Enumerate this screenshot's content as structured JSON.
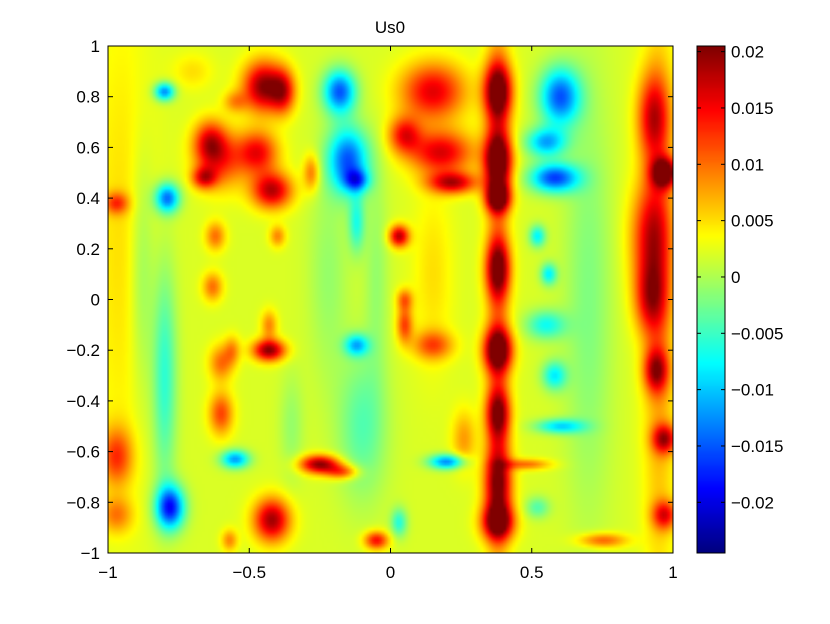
{
  "chart_data": {
    "type": "heatmap",
    "title": "Us0",
    "xlabel": "",
    "ylabel": "",
    "xlim": [
      -1,
      1
    ],
    "ylim": [
      -1,
      1
    ],
    "grid": false,
    "colormap": "jet",
    "x_ticks": [
      {
        "value": -1,
        "label": "−1"
      },
      {
        "value": -0.5,
        "label": "−0.5"
      },
      {
        "value": 0,
        "label": "0"
      },
      {
        "value": 0.5,
        "label": "0.5"
      },
      {
        "value": 1,
        "label": "1"
      }
    ],
    "y_ticks": [
      {
        "value": -1,
        "label": "−1"
      },
      {
        "value": -0.8,
        "label": "−0.8"
      },
      {
        "value": -0.6,
        "label": "−0.6"
      },
      {
        "value": -0.4,
        "label": "−0.4"
      },
      {
        "value": -0.2,
        "label": "−0.2"
      },
      {
        "value": 0,
        "label": "0"
      },
      {
        "value": 0.2,
        "label": "0.2"
      },
      {
        "value": 0.4,
        "label": "0.4"
      },
      {
        "value": 0.6,
        "label": "0.6"
      },
      {
        "value": 0.8,
        "label": "0.8"
      },
      {
        "value": 1,
        "label": "1"
      }
    ],
    "colorbar": {
      "range": [
        -0.0245,
        0.0205
      ],
      "ticks": [
        {
          "value": 0.02,
          "label": "0.02"
        },
        {
          "value": 0.015,
          "label": "0.015"
        },
        {
          "value": 0.01,
          "label": "0.01"
        },
        {
          "value": 0.005,
          "label": "0.005"
        },
        {
          "value": 0,
          "label": "0"
        },
        {
          "value": -0.005,
          "label": "−0.005"
        },
        {
          "value": -0.01,
          "label": "−0.01"
        },
        {
          "value": -0.015,
          "label": "−0.015"
        },
        {
          "value": -0.02,
          "label": "−0.02"
        }
      ]
    },
    "background_value": 0.002,
    "features": [
      {
        "x": -0.95,
        "y": 0.25,
        "sx": 0.08,
        "sy": 0.7,
        "v": 0.003
      },
      {
        "x": -0.97,
        "y": 0.38,
        "sx": 0.03,
        "sy": 0.03,
        "v": 0.009
      },
      {
        "x": -0.97,
        "y": -0.62,
        "sx": 0.04,
        "sy": 0.08,
        "v": 0.01
      },
      {
        "x": -0.97,
        "y": -0.85,
        "sx": 0.04,
        "sy": 0.05,
        "v": 0.007
      },
      {
        "x": -0.88,
        "y": 0.1,
        "sx": 0.03,
        "sy": 0.35,
        "v": -0.004
      },
      {
        "x": -0.8,
        "y": 0.82,
        "sx": 0.025,
        "sy": 0.025,
        "v": -0.015
      },
      {
        "x": -0.79,
        "y": 0.4,
        "sx": 0.03,
        "sy": 0.04,
        "v": -0.016
      },
      {
        "x": -0.78,
        "y": -0.82,
        "sx": 0.035,
        "sy": 0.06,
        "v": -0.02
      },
      {
        "x": -0.8,
        "y": -0.3,
        "sx": 0.03,
        "sy": 0.3,
        "v": -0.008
      },
      {
        "x": -0.7,
        "y": 0.9,
        "sx": 0.05,
        "sy": 0.05,
        "v": 0.003
      },
      {
        "x": -0.64,
        "y": 0.62,
        "sx": 0.04,
        "sy": 0.06,
        "v": 0.012
      },
      {
        "x": -0.6,
        "y": 0.55,
        "sx": 0.06,
        "sy": 0.08,
        "v": 0.01
      },
      {
        "x": -0.66,
        "y": 0.48,
        "sx": 0.03,
        "sy": 0.03,
        "v": 0.012
      },
      {
        "x": -0.62,
        "y": 0.25,
        "sx": 0.025,
        "sy": 0.04,
        "v": 0.008
      },
      {
        "x": -0.63,
        "y": 0.05,
        "sx": 0.025,
        "sy": 0.04,
        "v": 0.008
      },
      {
        "x": -0.6,
        "y": -0.25,
        "sx": 0.03,
        "sy": 0.05,
        "v": 0.008
      },
      {
        "x": -0.6,
        "y": -0.45,
        "sx": 0.03,
        "sy": 0.06,
        "v": 0.01
      },
      {
        "x": -0.56,
        "y": -0.2,
        "sx": 0.02,
        "sy": 0.04,
        "v": 0.006
      },
      {
        "x": -0.55,
        "y": -0.63,
        "sx": 0.035,
        "sy": 0.025,
        "v": -0.014
      },
      {
        "x": -0.57,
        "y": -0.95,
        "sx": 0.02,
        "sy": 0.03,
        "v": 0.007
      },
      {
        "x": -0.55,
        "y": 0.78,
        "sx": 0.03,
        "sy": 0.03,
        "v": 0.006
      },
      {
        "x": -0.45,
        "y": 0.84,
        "sx": 0.05,
        "sy": 0.07,
        "v": 0.018
      },
      {
        "x": -0.38,
        "y": 0.82,
        "sx": 0.03,
        "sy": 0.06,
        "v": 0.012
      },
      {
        "x": -0.47,
        "y": 0.58,
        "sx": 0.05,
        "sy": 0.06,
        "v": 0.013
      },
      {
        "x": -0.42,
        "y": 0.43,
        "sx": 0.05,
        "sy": 0.05,
        "v": 0.016
      },
      {
        "x": -0.4,
        "y": 0.25,
        "sx": 0.02,
        "sy": 0.03,
        "v": 0.007
      },
      {
        "x": -0.43,
        "y": -0.2,
        "sx": 0.04,
        "sy": 0.03,
        "v": 0.018
      },
      {
        "x": -0.43,
        "y": -0.1,
        "sx": 0.02,
        "sy": 0.04,
        "v": 0.007
      },
      {
        "x": -0.42,
        "y": -0.87,
        "sx": 0.045,
        "sy": 0.06,
        "v": 0.017
      },
      {
        "x": -0.35,
        "y": -0.5,
        "sx": 0.03,
        "sy": 0.15,
        "v": -0.003
      },
      {
        "x": -0.28,
        "y": 0.5,
        "sx": 0.02,
        "sy": 0.05,
        "v": 0.008
      },
      {
        "x": -0.25,
        "y": -0.65,
        "sx": 0.05,
        "sy": 0.025,
        "v": 0.018
      },
      {
        "x": -0.17,
        "y": -0.68,
        "sx": 0.04,
        "sy": 0.02,
        "v": 0.01
      },
      {
        "x": -0.22,
        "y": 0.1,
        "sx": 0.05,
        "sy": 0.3,
        "v": -0.003
      },
      {
        "x": -0.18,
        "y": 0.82,
        "sx": 0.04,
        "sy": 0.06,
        "v": -0.017
      },
      {
        "x": -0.15,
        "y": 0.55,
        "sx": 0.05,
        "sy": 0.09,
        "v": -0.017
      },
      {
        "x": -0.12,
        "y": 0.47,
        "sx": 0.03,
        "sy": 0.03,
        "v": -0.012
      },
      {
        "x": -0.12,
        "y": 0.3,
        "sx": 0.02,
        "sy": 0.08,
        "v": -0.008
      },
      {
        "x": -0.12,
        "y": -0.18,
        "sx": 0.03,
        "sy": 0.03,
        "v": -0.012
      },
      {
        "x": -0.1,
        "y": -0.5,
        "sx": 0.06,
        "sy": 0.2,
        "v": -0.006
      },
      {
        "x": -0.05,
        "y": -0.95,
        "sx": 0.03,
        "sy": 0.025,
        "v": 0.013
      },
      {
        "x": -0.05,
        "y": 0.1,
        "sx": 0.03,
        "sy": 0.3,
        "v": -0.003
      },
      {
        "x": 0.03,
        "y": 0.25,
        "sx": 0.025,
        "sy": 0.03,
        "v": 0.016
      },
      {
        "x": 0.05,
        "y": 0.65,
        "sx": 0.04,
        "sy": 0.05,
        "v": 0.012
      },
      {
        "x": 0.05,
        "y": -0.1,
        "sx": 0.02,
        "sy": 0.05,
        "v": 0.01
      },
      {
        "x": 0.05,
        "y": 0.0,
        "sx": 0.02,
        "sy": 0.03,
        "v": 0.008
      },
      {
        "x": 0.03,
        "y": -0.88,
        "sx": 0.02,
        "sy": 0.04,
        "v": -0.008
      },
      {
        "x": 0.15,
        "y": 0.82,
        "sx": 0.08,
        "sy": 0.08,
        "v": 0.014
      },
      {
        "x": 0.18,
        "y": 0.58,
        "sx": 0.08,
        "sy": 0.06,
        "v": 0.014
      },
      {
        "x": 0.22,
        "y": 0.46,
        "sx": 0.06,
        "sy": 0.03,
        "v": 0.015
      },
      {
        "x": 0.15,
        "y": -0.18,
        "sx": 0.05,
        "sy": 0.04,
        "v": 0.009
      },
      {
        "x": 0.2,
        "y": -0.64,
        "sx": 0.045,
        "sy": 0.02,
        "v": -0.015
      },
      {
        "x": 0.26,
        "y": -0.55,
        "sx": 0.03,
        "sy": 0.08,
        "v": 0.006
      },
      {
        "x": 0.15,
        "y": 0.1,
        "sx": 0.05,
        "sy": 0.25,
        "v": 0.003
      },
      {
        "x": 0.38,
        "y": 0.82,
        "sx": 0.035,
        "sy": 0.08,
        "v": 0.02
      },
      {
        "x": 0.38,
        "y": 0.55,
        "sx": 0.035,
        "sy": 0.08,
        "v": 0.02
      },
      {
        "x": 0.38,
        "y": 0.4,
        "sx": 0.03,
        "sy": 0.04,
        "v": 0.019
      },
      {
        "x": 0.38,
        "y": 0.12,
        "sx": 0.03,
        "sy": 0.08,
        "v": 0.016
      },
      {
        "x": 0.38,
        "y": -0.2,
        "sx": 0.035,
        "sy": 0.06,
        "v": 0.02
      },
      {
        "x": 0.38,
        "y": -0.45,
        "sx": 0.03,
        "sy": 0.07,
        "v": 0.015
      },
      {
        "x": 0.38,
        "y": -0.72,
        "sx": 0.035,
        "sy": 0.1,
        "v": 0.015
      },
      {
        "x": 0.38,
        "y": -0.88,
        "sx": 0.04,
        "sy": 0.05,
        "v": 0.018
      },
      {
        "x": 0.38,
        "y": 0.0,
        "sx": 0.03,
        "sy": 0.95,
        "v": 0.007
      },
      {
        "x": 0.48,
        "y": -0.65,
        "sx": 0.06,
        "sy": 0.015,
        "v": 0.008
      },
      {
        "x": 0.6,
        "y": 0.8,
        "sx": 0.05,
        "sy": 0.08,
        "v": -0.017
      },
      {
        "x": 0.55,
        "y": 0.62,
        "sx": 0.05,
        "sy": 0.04,
        "v": -0.013
      },
      {
        "x": 0.58,
        "y": 0.48,
        "sx": 0.06,
        "sy": 0.04,
        "v": -0.018
      },
      {
        "x": 0.52,
        "y": 0.25,
        "sx": 0.02,
        "sy": 0.03,
        "v": -0.01
      },
      {
        "x": 0.56,
        "y": 0.1,
        "sx": 0.02,
        "sy": 0.03,
        "v": -0.01
      },
      {
        "x": 0.55,
        "y": -0.1,
        "sx": 0.05,
        "sy": 0.04,
        "v": -0.009
      },
      {
        "x": 0.58,
        "y": -0.3,
        "sx": 0.03,
        "sy": 0.04,
        "v": -0.01
      },
      {
        "x": 0.6,
        "y": -0.5,
        "sx": 0.06,
        "sy": 0.02,
        "v": -0.011
      },
      {
        "x": 0.52,
        "y": -0.82,
        "sx": 0.03,
        "sy": 0.03,
        "v": -0.006
      },
      {
        "x": 0.7,
        "y": 0.0,
        "sx": 0.06,
        "sy": 0.6,
        "v": -0.004
      },
      {
        "x": 0.75,
        "y": -0.95,
        "sx": 0.06,
        "sy": 0.02,
        "v": 0.009
      },
      {
        "x": 0.93,
        "y": 0.72,
        "sx": 0.04,
        "sy": 0.12,
        "v": 0.013
      },
      {
        "x": 0.97,
        "y": 0.5,
        "sx": 0.03,
        "sy": 0.04,
        "v": 0.02
      },
      {
        "x": 0.92,
        "y": 0.25,
        "sx": 0.05,
        "sy": 0.15,
        "v": 0.012
      },
      {
        "x": 0.92,
        "y": 0.0,
        "sx": 0.04,
        "sy": 0.1,
        "v": 0.011
      },
      {
        "x": 0.94,
        "y": -0.28,
        "sx": 0.03,
        "sy": 0.06,
        "v": 0.014
      },
      {
        "x": 0.97,
        "y": -0.55,
        "sx": 0.03,
        "sy": 0.04,
        "v": 0.014
      },
      {
        "x": 0.97,
        "y": -0.85,
        "sx": 0.03,
        "sy": 0.04,
        "v": 0.012
      },
      {
        "x": 0.95,
        "y": 0.0,
        "sx": 0.04,
        "sy": 0.8,
        "v": 0.006
      }
    ]
  }
}
